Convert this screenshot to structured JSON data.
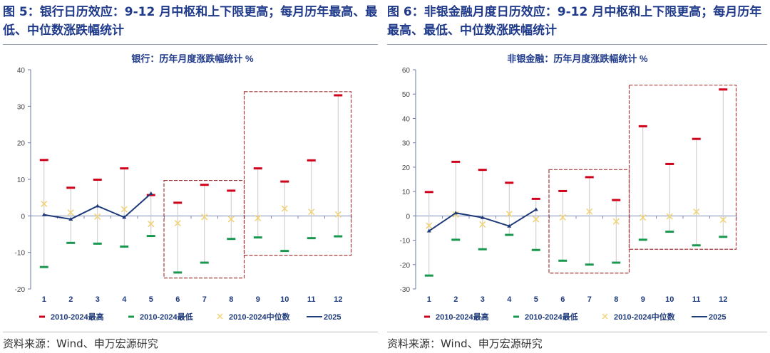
{
  "headers": [
    {
      "title": "图 5：银行日历效应：9-12 月中枢和上下限更高；每月历年最高、最低、中位数涨跌幅统计",
      "source": "资料来源：Wind、申万宏源研究"
    },
    {
      "title": "图 6：非银金融月度日历效应：9-12 月中枢和上下限更高；每月历年最高、最低、中位数涨跌幅统计",
      "source": "资料来源：Wind、申万宏源研究"
    }
  ],
  "colors": {
    "max": "#d0021b",
    "min": "#1a9850",
    "median": "#f2d479",
    "line2025": "#1f3a7a",
    "box": "#a33a3a",
    "title": "#1f3a8a"
  },
  "chart_data": [
    {
      "type": "scatter",
      "title": "银行：历年月度涨跌幅统计 %",
      "categories": [
        "1",
        "2",
        "3",
        "4",
        "5",
        "6",
        "7",
        "8",
        "9",
        "10",
        "11",
        "12"
      ],
      "ylim": [
        -20,
        40
      ],
      "yticks": [
        -20,
        -10,
        0,
        10,
        20,
        30,
        40
      ],
      "legend": "bottom",
      "series": [
        {
          "name": "2010-2024最高",
          "marker": "dash",
          "values": [
            15.3,
            7.7,
            9.9,
            13.0,
            5.7,
            3.6,
            8.5,
            6.9,
            13.0,
            9.4,
            15.2,
            33.0
          ]
        },
        {
          "name": "2010-2024最低",
          "marker": "dash",
          "values": [
            -14.0,
            -7.4,
            -7.6,
            -8.4,
            -5.5,
            -15.5,
            -12.8,
            -6.3,
            -5.9,
            -9.6,
            -6.1,
            -5.6
          ]
        },
        {
          "name": "2010-2024中位数",
          "marker": "x",
          "values": [
            3.3,
            0.9,
            -0.2,
            1.8,
            -2.2,
            -2.0,
            -0.3,
            -0.9,
            -0.6,
            2.0,
            1.1,
            0.4
          ]
        },
        {
          "name": "2025",
          "marker": "line",
          "values": [
            0.3,
            -0.9,
            2.7,
            -0.4,
            6.1
          ]
        }
      ],
      "highlight_boxes": [
        {
          "months": [
            "6",
            "8"
          ],
          "range": [
            -17,
            9.7
          ]
        },
        {
          "months": [
            "9",
            "12"
          ],
          "range": [
            -10.8,
            34
          ]
        }
      ]
    },
    {
      "type": "scatter",
      "title": "非银金融：历年月度涨跌幅统计 %",
      "categories": [
        "1",
        "2",
        "3",
        "4",
        "5",
        "6",
        "7",
        "8",
        "9",
        "10",
        "11",
        "12"
      ],
      "ylim": [
        -30,
        60
      ],
      "yticks": [
        -30,
        -20,
        -10,
        0,
        10,
        20,
        30,
        40,
        50,
        60
      ],
      "legend": "bottom",
      "series": [
        {
          "name": "2010-2024最高",
          "marker": "dash",
          "values": [
            9.8,
            22.2,
            18.9,
            13.6,
            7.0,
            10.2,
            15.9,
            6.5,
            36.8,
            21.3,
            31.6,
            51.9
          ]
        },
        {
          "name": "2010-2024最低",
          "marker": "dash",
          "values": [
            -24.5,
            -9.8,
            -13.7,
            -7.8,
            -14.0,
            -18.4,
            -20.0,
            -19.2,
            -9.8,
            -6.5,
            -12.1,
            -8.6
          ]
        },
        {
          "name": "2010-2024中位数",
          "marker": "x",
          "values": [
            -4.0,
            0.6,
            -3.5,
            0.8,
            -1.4,
            -0.6,
            1.8,
            -2.3,
            -0.7,
            -0.2,
            1.7,
            -1.6
          ]
        },
        {
          "name": "2025",
          "marker": "line",
          "values": [
            -6.2,
            1.2,
            -0.7,
            -4.2,
            2.6
          ]
        }
      ],
      "highlight_boxes": [
        {
          "months": [
            "6",
            "8"
          ],
          "range": [
            -23.5,
            19
          ]
        },
        {
          "months": [
            "9",
            "12"
          ],
          "range": [
            -13.7,
            53.7
          ]
        }
      ]
    }
  ]
}
